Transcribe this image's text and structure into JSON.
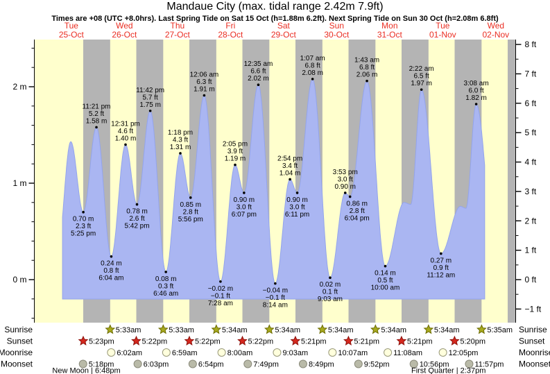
{
  "page": {
    "title": "Mandaue City (max. tidal range 2.42m 7.9ft)",
    "subtitle": "Times are +08 (UTC +8.0hrs). Last Spring Tide on Sat 15 Oct (h=1.88m 6.2ft). Next Spring Tide on Sun 30 Oct (h=2.08m 6.8ft)"
  },
  "chart_data": {
    "type": "area",
    "title": "Mandaue City (max. tidal range 2.42m 7.9ft)",
    "subtitle": "Times are +08 (UTC +8.0hrs). Last Spring Tide on Sat 15 Oct (h=1.88m 6.2ft). Next Spring Tide on Sun 30 Oct (h=2.08m 6.8ft)",
    "days": [
      {
        "name": "Tue",
        "date": "25-Oct"
      },
      {
        "name": "Wed",
        "date": "26-Oct"
      },
      {
        "name": "Thu",
        "date": "27-Oct"
      },
      {
        "name": "Fri",
        "date": "28-Oct"
      },
      {
        "name": "Sat",
        "date": "29-Oct"
      },
      {
        "name": "Sun",
        "date": "30-Oct"
      },
      {
        "name": "Mon",
        "date": "31-Oct"
      },
      {
        "name": "Tue",
        "date": "01-Nov"
      },
      {
        "name": "Wed",
        "date": "02-Nov"
      }
    ],
    "y_axis_left": {
      "unit": "m",
      "major_ticks": [
        0,
        1,
        2
      ],
      "tick_labels": [
        "0 m",
        "1 m",
        "2 m"
      ],
      "minor_step_m": 0.2
    },
    "y_axis_right": {
      "unit": "ft",
      "major_ticks": [
        -1,
        0,
        1,
        2,
        3,
        4,
        5,
        6,
        7,
        8
      ],
      "tick_labels": [
        "−1 ft",
        "0 ft",
        "1 ft",
        "2 ft",
        "3 ft",
        "4 ft",
        "5 ft",
        "6 ft",
        "7 ft",
        "8 ft"
      ],
      "minor_step_ft": 0.5
    },
    "extremes": [
      {
        "day": 0,
        "time": "11:45 am",
        "height_m": 1.43,
        "kind": "high",
        "labeled": false
      },
      {
        "day": 0,
        "time": "5:25 pm",
        "height_m": 0.7,
        "ft_label": "2.3 ft",
        "kind": "low",
        "labeled": true
      },
      {
        "day": 0,
        "time": "11:21 pm",
        "height_m": 1.58,
        "ft_label": "5.2 ft",
        "kind": "high",
        "labeled": true
      },
      {
        "day": 1,
        "time": "6:04 am",
        "height_m": 0.24,
        "ft_label": "0.8 ft",
        "kind": "low",
        "labeled": true
      },
      {
        "day": 1,
        "time": "12:31 pm",
        "height_m": 1.4,
        "ft_label": "4.6 ft",
        "kind": "high",
        "labeled": true
      },
      {
        "day": 1,
        "time": "5:42 pm",
        "height_m": 0.78,
        "ft_label": "2.6 ft",
        "kind": "low",
        "labeled": true
      },
      {
        "day": 1,
        "time": "11:42 pm",
        "height_m": 1.75,
        "ft_label": "5.7 ft",
        "kind": "high",
        "labeled": true
      },
      {
        "day": 2,
        "time": "6:46 am",
        "height_m": 0.08,
        "ft_label": "0.3 ft",
        "kind": "low",
        "labeled": true
      },
      {
        "day": 2,
        "time": "1:18 pm",
        "height_m": 1.31,
        "ft_label": "4.3 ft",
        "kind": "high",
        "labeled": true
      },
      {
        "day": 2,
        "time": "5:56 pm",
        "height_m": 0.85,
        "ft_label": "2.8 ft",
        "kind": "low",
        "labeled": true
      },
      {
        "day": 3,
        "time": "12:06 am",
        "height_m": 1.91,
        "ft_label": "6.3 ft",
        "kind": "high",
        "labeled": true
      },
      {
        "day": 3,
        "time": "7:28 am",
        "height_m": -0.02,
        "ft_label": "−0.1 ft",
        "kind": "low",
        "labeled": true
      },
      {
        "day": 3,
        "time": "2:05 pm",
        "height_m": 1.19,
        "ft_label": "3.9 ft",
        "kind": "high",
        "labeled": true
      },
      {
        "day": 3,
        "time": "6:07 pm",
        "height_m": 0.9,
        "ft_label": "3.0 ft",
        "kind": "low",
        "labeled": true
      },
      {
        "day": 4,
        "time": "12:35 am",
        "height_m": 2.02,
        "ft_label": "6.6 ft",
        "kind": "high",
        "labeled": true
      },
      {
        "day": 4,
        "time": "8:14 am",
        "height_m": -0.04,
        "ft_label": "−0.1 ft",
        "kind": "low",
        "labeled": true
      },
      {
        "day": 4,
        "time": "2:54 pm",
        "height_m": 1.04,
        "ft_label": "3.4 ft",
        "kind": "high",
        "labeled": true
      },
      {
        "day": 4,
        "time": "6:11 pm",
        "height_m": 0.9,
        "ft_label": "3.0 ft",
        "kind": "low",
        "labeled": true
      },
      {
        "day": 5,
        "time": "1:07 am",
        "height_m": 2.08,
        "ft_label": "6.8 ft",
        "kind": "high",
        "labeled": true
      },
      {
        "day": 5,
        "time": "9:03 am",
        "height_m": 0.02,
        "ft_label": "0.1 ft",
        "kind": "low",
        "labeled": true
      },
      {
        "day": 5,
        "time": "3:53 pm",
        "height_m": 0.9,
        "ft_label": "3.0 ft",
        "kind": "high",
        "labeled": true
      },
      {
        "day": 5,
        "time": "6:04 pm",
        "height_m": 0.86,
        "ft_label": "2.8 ft",
        "kind": "low",
        "labeled": true,
        "label_dx": 10
      },
      {
        "day": 6,
        "time": "1:43 am",
        "height_m": 2.06,
        "ft_label": "6.8 ft",
        "kind": "high",
        "labeled": true
      },
      {
        "day": 6,
        "time": "10:00 am",
        "height_m": 0.14,
        "ft_label": "0.5 ft",
        "kind": "low",
        "labeled": true
      },
      {
        "day": 6,
        "time": "6:30 pm",
        "height_m": 0.8,
        "kind": "high",
        "labeled": false
      },
      {
        "day": 6,
        "time": "9:30 pm",
        "height_m": 0.78,
        "kind": "low",
        "labeled": false
      },
      {
        "day": 7,
        "time": "2:22 am",
        "height_m": 1.97,
        "ft_label": "6.5 ft",
        "kind": "high",
        "labeled": true
      },
      {
        "day": 7,
        "time": "11:12 am",
        "height_m": 0.27,
        "ft_label": "0.9 ft",
        "kind": "low",
        "labeled": true
      },
      {
        "day": 7,
        "time": "8:00 pm",
        "height_m": 0.76,
        "kind": "high",
        "labeled": false
      },
      {
        "day": 7,
        "time": "10:30 pm",
        "height_m": 0.74,
        "kind": "low",
        "labeled": false
      },
      {
        "day": 8,
        "time": "3:08 am",
        "height_m": 1.82,
        "ft_label": "6.0 ft",
        "kind": "high",
        "labeled": true
      }
    ],
    "curve": {
      "visible_start_hour": 8.0,
      "visible_end_hour": 199.0,
      "lead_extreme": {
        "hour": 5.75,
        "height_m": 0.3
      },
      "trail_extreme": {
        "hour": 204.0,
        "height_m": 0.2
      },
      "fill_bottom_m": -0.2
    },
    "astro": {
      "rows": [
        {
          "name": "sunrise",
          "label": "Sunrise",
          "icon": "sunrise-star",
          "events": [
            {
              "day": 1,
              "time": "5:33am"
            },
            {
              "day": 2,
              "time": "5:33am"
            },
            {
              "day": 3,
              "time": "5:34am"
            },
            {
              "day": 4,
              "time": "5:34am"
            },
            {
              "day": 5,
              "time": "5:34am"
            },
            {
              "day": 6,
              "time": "5:34am"
            },
            {
              "day": 7,
              "time": "5:34am"
            },
            {
              "day": 8,
              "time": "5:35am"
            }
          ]
        },
        {
          "name": "sunset",
          "label": "Sunset",
          "icon": "sunset-star",
          "events": [
            {
              "day": 0,
              "time": "5:23pm"
            },
            {
              "day": 1,
              "time": "5:22pm"
            },
            {
              "day": 2,
              "time": "5:22pm"
            },
            {
              "day": 3,
              "time": "5:22pm"
            },
            {
              "day": 4,
              "time": "5:21pm"
            },
            {
              "day": 5,
              "time": "5:21pm"
            },
            {
              "day": 6,
              "time": "5:21pm"
            },
            {
              "day": 7,
              "time": "5:20pm"
            }
          ]
        },
        {
          "name": "moonrise",
          "label": "Moonrise",
          "icon": "moonrise-circle",
          "events": [
            {
              "day": 1,
              "time": "6:02am"
            },
            {
              "day": 2,
              "time": "6:59am"
            },
            {
              "day": 3,
              "time": "8:00am"
            },
            {
              "day": 4,
              "time": "9:03am"
            },
            {
              "day": 5,
              "time": "10:07am"
            },
            {
              "day": 6,
              "time": "11:08am"
            },
            {
              "day": 7,
              "time": "12:05pm"
            }
          ]
        },
        {
          "name": "moonset",
          "label": "Moonset",
          "icon": "moonset-circle",
          "events": [
            {
              "day": 0,
              "time": "5:18pm"
            },
            {
              "day": 1,
              "time": "6:03pm"
            },
            {
              "day": 2,
              "time": "6:54pm"
            },
            {
              "day": 3,
              "time": "7:49pm"
            },
            {
              "day": 4,
              "time": "8:49pm"
            },
            {
              "day": 5,
              "time": "9:52pm"
            },
            {
              "day": 6,
              "time": "10:56pm"
            },
            {
              "day": 7,
              "time": "11:57pm"
            }
          ]
        }
      ],
      "moon_phases": [
        {
          "label": "New Moon | 6:48pm",
          "day": 0,
          "time": "6:48pm"
        },
        {
          "label": "First Quarter | 2:37pm",
          "day": 7,
          "time": "2:37pm"
        }
      ]
    },
    "colors": {
      "day_band": "#ffffcd",
      "night_band": "#b4b4b4",
      "tide_fill": "#aab6f2",
      "tide_edge": "#93a4ec",
      "date_label": "#ea2d21",
      "sunrise_icon": "#a8aa1e",
      "sunrise_icon_edge": "#6b6b00",
      "sunset_icon": "#d5281e",
      "sunset_icon_edge": "#8c120c",
      "moonrise_icon": "#ffffdd",
      "moonrise_icon_edge": "#99997a",
      "moonset_icon": "#b9baa8",
      "moonset_icon_edge": "#8a8a7a",
      "text": "#000000"
    }
  }
}
